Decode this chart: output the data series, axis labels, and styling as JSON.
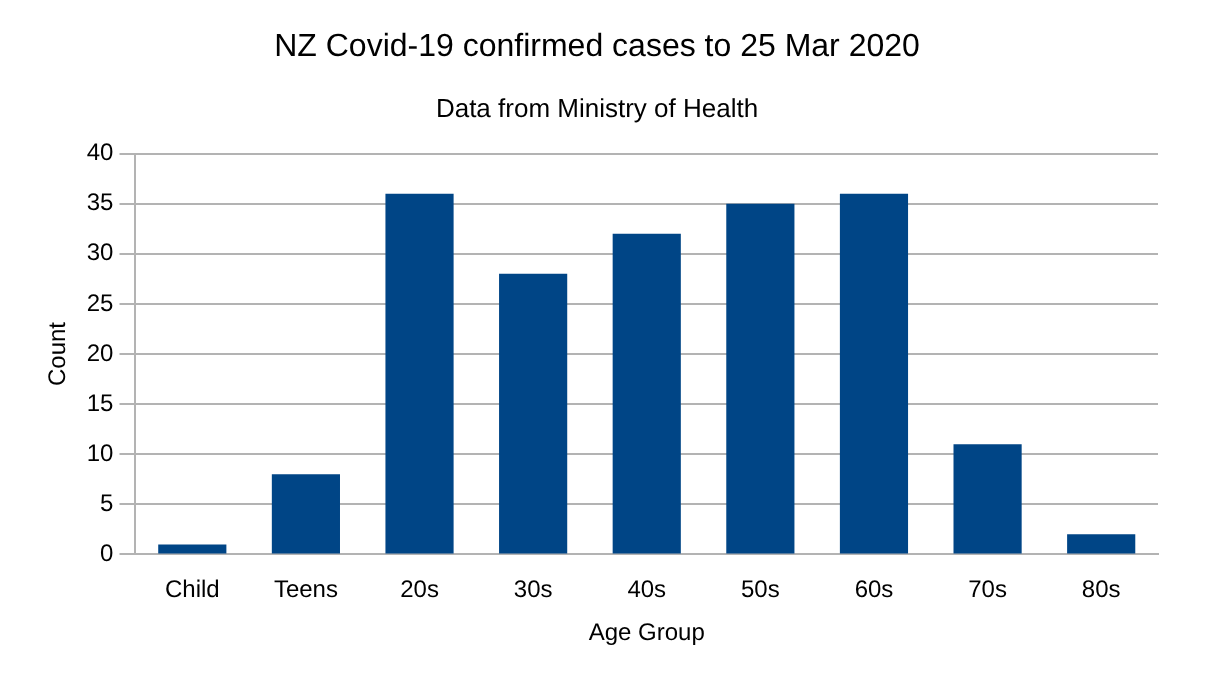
{
  "chart_data": {
    "type": "bar",
    "title": "NZ Covid-19 confirmed cases to 25 Mar 2020",
    "subtitle": "Data from Ministry of Health",
    "xlabel": "Age Group",
    "ylabel": "Count",
    "categories": [
      "Child",
      "Teens",
      "20s",
      "30s",
      "40s",
      "50s",
      "60s",
      "70s",
      "80s"
    ],
    "values": [
      1,
      8,
      36,
      28,
      32,
      35,
      36,
      11,
      2
    ],
    "color": "#004586",
    "ylim": [
      0,
      40
    ],
    "yticks": [
      0,
      5,
      10,
      15,
      20,
      25,
      30,
      35,
      40
    ],
    "grid": "y"
  }
}
